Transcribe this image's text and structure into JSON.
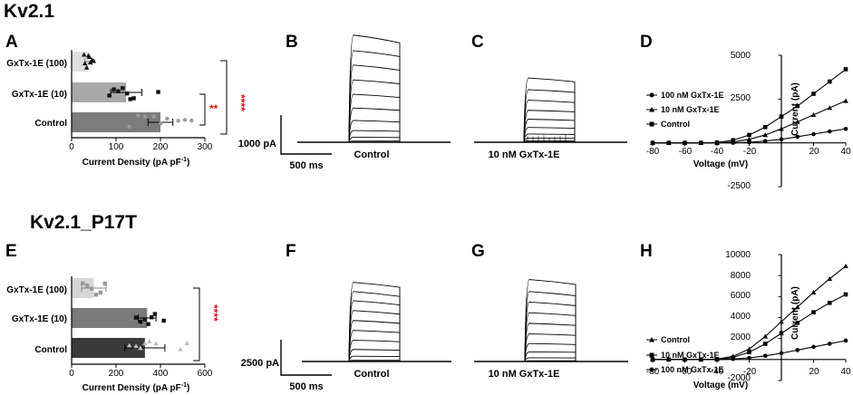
{
  "rows": [
    {
      "title": "Kv2.1",
      "bar_panel": {
        "letter": "A",
        "categories": [
          "GxTx-1E (100)",
          "GxTx-1E (10)",
          "Control"
        ],
        "xlabel": "Current Density (pA pF",
        "xlabel_sup": "-1",
        "xlabel_close": ")",
        "xticks": [
          "0",
          "100",
          "200",
          "300"
        ],
        "significance": [
          "**",
          "****"
        ]
      },
      "trace_panels": [
        {
          "letter": "B",
          "label": "Control"
        },
        {
          "letter": "C",
          "label": "10 nM GxTx-1E"
        }
      ],
      "scale_bar": {
        "current": "1000 pA",
        "time": "500 ms"
      },
      "iv_panel": {
        "letter": "D",
        "ylabel": "Current (pA)",
        "xlabel": "Voltage (mV)",
        "xticks": [
          "-80",
          "-60",
          "-40",
          "-20",
          "20",
          "40"
        ],
        "yticks": [
          "5000",
          "2500",
          "-2500"
        ],
        "legend": [
          "Control",
          "10 nM GxTx-1E",
          "100 nM GxTx-1E"
        ]
      }
    },
    {
      "title": "Kv2.1_P17T",
      "bar_panel": {
        "letter": "E",
        "categories": [
          "GxTx-1E (100)",
          "GxTx-1E (10)",
          "Control"
        ],
        "xlabel": "Current Density (pA pF",
        "xlabel_sup": "-1",
        "xlabel_close": ")",
        "xticks": [
          "0",
          "200",
          "400",
          "600"
        ],
        "significance": [
          "****"
        ]
      },
      "trace_panels": [
        {
          "letter": "F",
          "label": "Control"
        },
        {
          "letter": "G",
          "label": "10 nM GxTx-1E"
        }
      ],
      "scale_bar": {
        "current": "2500 pA",
        "time": "500 ms"
      },
      "iv_panel": {
        "letter": "H",
        "ylabel": "Current (pA)",
        "xlabel": "Voltage (mV)",
        "xticks": [
          "-80",
          "-60",
          "-40",
          "-20",
          "20",
          "40"
        ],
        "yticks": [
          "10000",
          "8000",
          "6000",
          "4000",
          "2000",
          "-2000"
        ],
        "legend": [
          "Control",
          "10 nM GxTx-1E",
          "100 nM GxTx-1E"
        ]
      }
    }
  ],
  "chart_data": [
    {
      "type": "bar",
      "panel": "A",
      "orientation": "horizontal",
      "categories": [
        "GxTx-1E (100)",
        "GxTx-1E (10)",
        "Control"
      ],
      "values": [
        38,
        123,
        200
      ],
      "errors": [
        8,
        35,
        28
      ],
      "points": [
        [
          28,
          34,
          38,
          42,
          46,
          50,
          30,
          40
        ],
        [
          85,
          95,
          105,
          115,
          125,
          132,
          140,
          195
        ],
        [
          130,
          150,
          165,
          185,
          200,
          215,
          240,
          255,
          270
        ]
      ],
      "xlim": [
        0,
        300
      ],
      "colors": [
        "#dedede",
        "#a9a9a9",
        "#7c7c7c"
      ]
    },
    {
      "type": "bar",
      "panel": "E",
      "orientation": "horizontal",
      "categories": [
        "GxTx-1E (100)",
        "GxTx-1E (10)",
        "Control"
      ],
      "values": [
        100,
        340,
        330
      ],
      "errors": [
        55,
        40,
        90
      ],
      "points": [
        [
          50,
          70,
          90,
          110,
          130,
          150
        ],
        [
          290,
          310,
          330,
          345,
          360,
          375,
          415
        ],
        [
          260,
          290,
          310,
          330,
          350,
          380,
          490,
          520
        ]
      ],
      "xlim": [
        0,
        600
      ],
      "colors": [
        "#d6d6d6",
        "#7a7a7a",
        "#3a3a3a"
      ]
    },
    {
      "type": "line",
      "panel": "D",
      "xlim": [
        -80,
        40
      ],
      "ylim": [
        -2500,
        5000
      ],
      "series": [
        {
          "name": "Control",
          "marker": "square",
          "x": [
            -80,
            -70,
            -60,
            -50,
            -40,
            -30,
            -20,
            -10,
            0,
            10,
            20,
            30,
            40
          ],
          "y": [
            0,
            0,
            0,
            0,
            20,
            150,
            450,
            900,
            1500,
            2100,
            2800,
            3500,
            4200
          ]
        },
        {
          "name": "10 nM GxTx-1E",
          "marker": "triangle",
          "x": [
            -80,
            -70,
            -60,
            -50,
            -40,
            -30,
            -20,
            -10,
            0,
            10,
            20,
            30,
            40
          ],
          "y": [
            0,
            0,
            0,
            0,
            0,
            50,
            200,
            450,
            800,
            1200,
            1600,
            2000,
            2400
          ]
        },
        {
          "name": "100 nM GxTx-1E",
          "marker": "circle",
          "x": [
            -80,
            -70,
            -60,
            -50,
            -40,
            -30,
            -20,
            -10,
            0,
            10,
            20,
            30,
            40
          ],
          "y": [
            0,
            0,
            0,
            0,
            0,
            0,
            30,
            100,
            200,
            350,
            500,
            650,
            800
          ]
        }
      ]
    },
    {
      "type": "line",
      "panel": "H",
      "xlim": [
        -80,
        40
      ],
      "ylim": [
        -2000,
        10000
      ],
      "series": [
        {
          "name": "Control",
          "marker": "triangle",
          "x": [
            -80,
            -70,
            -60,
            -50,
            -40,
            -30,
            -20,
            -10,
            0,
            10,
            20,
            30,
            40
          ],
          "y": [
            0,
            0,
            0,
            0,
            50,
            300,
            1000,
            2200,
            3600,
            5000,
            6400,
            7700,
            8900
          ]
        },
        {
          "name": "10 nM GxTx-1E",
          "marker": "square",
          "x": [
            -80,
            -70,
            -60,
            -50,
            -40,
            -30,
            -20,
            -10,
            0,
            10,
            20,
            30,
            40
          ],
          "y": [
            0,
            0,
            0,
            0,
            20,
            200,
            700,
            1500,
            2500,
            3500,
            4500,
            5400,
            6200
          ]
        },
        {
          "name": "100 nM GxTx-1E",
          "marker": "circle",
          "x": [
            -80,
            -70,
            -60,
            -50,
            -40,
            -30,
            -20,
            -10,
            0,
            10,
            20,
            30,
            40
          ],
          "y": [
            0,
            0,
            0,
            0,
            0,
            50,
            150,
            350,
            600,
            900,
            1200,
            1500,
            1800
          ]
        }
      ]
    },
    {
      "type": "line",
      "panel": "B",
      "sweeps": 11,
      "steady_amplitudes": [
        0,
        30,
        120,
        280,
        520,
        820,
        1150,
        1500,
        1850,
        2200,
        2550
      ],
      "peak_amplitudes": [
        0,
        30,
        130,
        300,
        560,
        880,
        1230,
        1600,
        1980,
        2350,
        2750
      ],
      "scale_current_pA": 1000,
      "scale_time_ms": 500
    },
    {
      "type": "line",
      "panel": "C",
      "sweeps": 11,
      "steady_amplitudes": [
        0,
        10,
        40,
        100,
        200,
        360,
        560,
        780,
        1020,
        1280,
        1550
      ],
      "peak_amplitudes": [
        0,
        10,
        40,
        105,
        210,
        380,
        590,
        820,
        1080,
        1350,
        1650
      ],
      "scale_current_pA": 1000,
      "scale_time_ms": 500
    },
    {
      "type": "line",
      "panel": "F",
      "sweeps": 11,
      "steady_amplitudes": [
        0,
        80,
        350,
        800,
        1400,
        2050,
        2700,
        3350,
        4000,
        4600,
        5250
      ],
      "peak_amplitudes": [
        0,
        80,
        370,
        850,
        1500,
        2200,
        2900,
        3600,
        4300,
        4950,
        5600
      ],
      "scale_current_pA": 2500,
      "scale_time_ms": 500
    },
    {
      "type": "line",
      "panel": "G",
      "sweeps": 11,
      "steady_amplitudes": [
        0,
        50,
        250,
        650,
        1200,
        1850,
        2550,
        3250,
        3950,
        4650,
        5450
      ],
      "peak_amplitudes": [
        0,
        50,
        260,
        680,
        1270,
        1950,
        2700,
        3450,
        4200,
        4950,
        5800
      ],
      "scale_current_pA": 2500,
      "scale_time_ms": 500
    }
  ]
}
